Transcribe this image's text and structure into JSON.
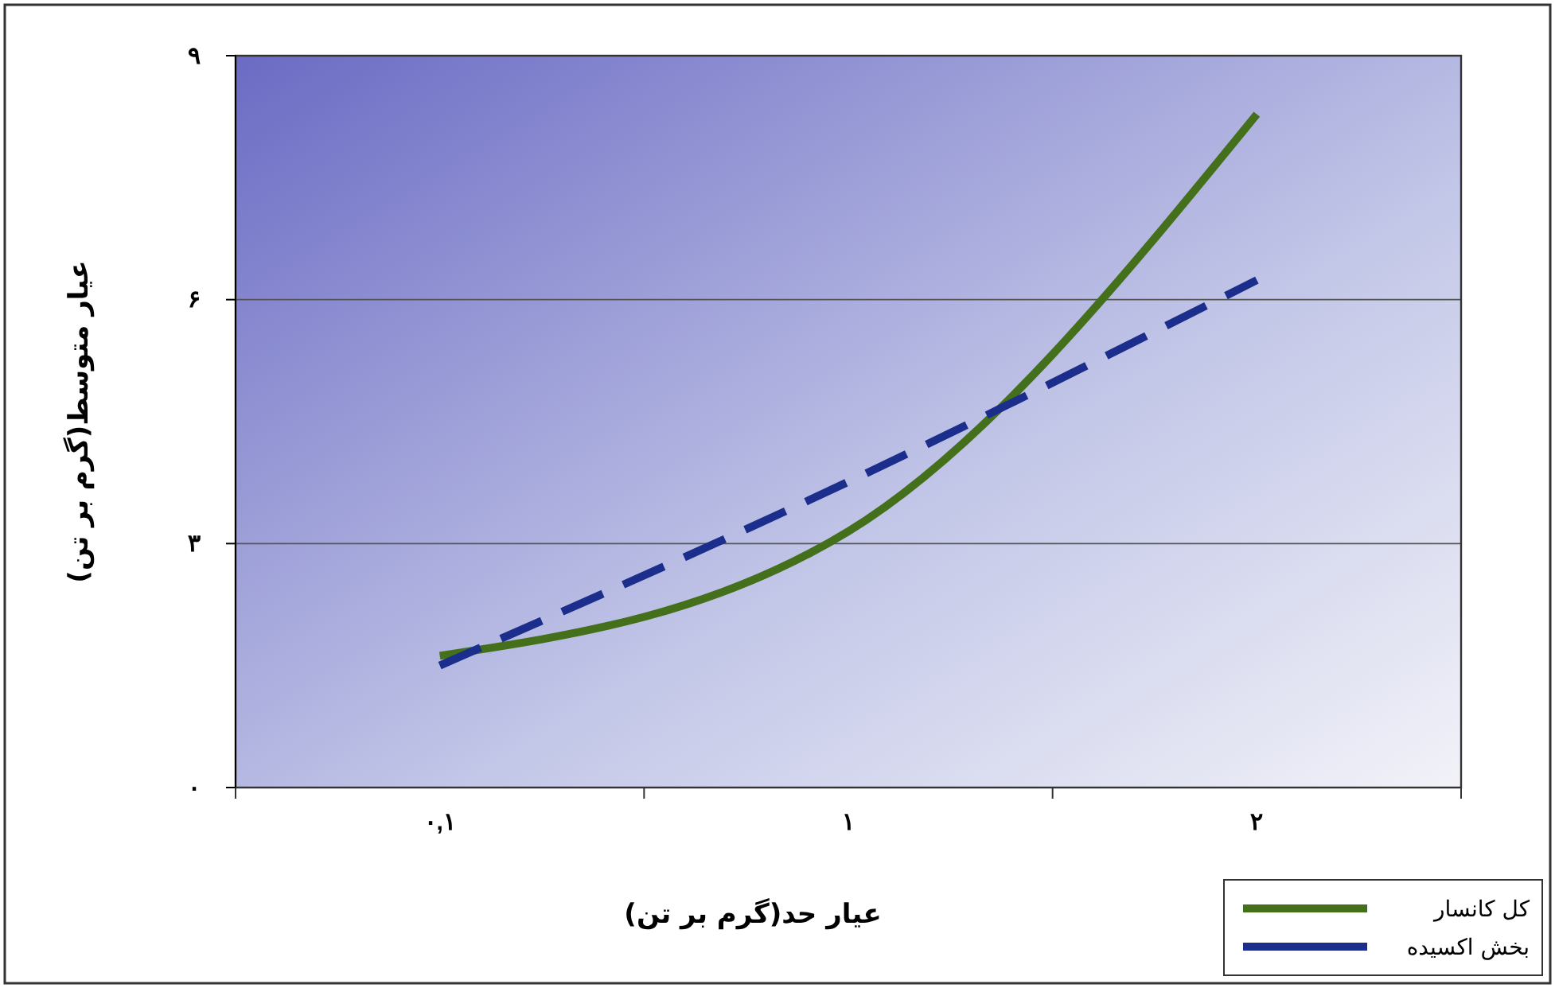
{
  "chart_data": {
    "type": "line",
    "xlabel": "عیار حد(گرم بر تن)",
    "ylabel": "عیار متوسط(گرم بر تن)",
    "categories": [
      "۰,۱",
      "۱",
      "۲"
    ],
    "ylim": [
      0,
      9
    ],
    "yticks": [
      {
        "value": 0,
        "label": "۰"
      },
      {
        "value": 3,
        "label": "۳"
      },
      {
        "value": 6,
        "label": "۶"
      },
      {
        "value": 9,
        "label": "۹"
      }
    ],
    "grid": "y",
    "legend": "bottom right",
    "marker": "none",
    "series": [
      {
        "name": "کل کانسار",
        "color": "#44701c",
        "values": [
          1.62,
          3.15,
          8.28
        ],
        "line_style": "solid"
      },
      {
        "name": "بخش اکسیده",
        "color": "#1c2e8c",
        "values": [
          1.5,
          3.76,
          6.24
        ],
        "line_style": "dashed"
      }
    ]
  }
}
